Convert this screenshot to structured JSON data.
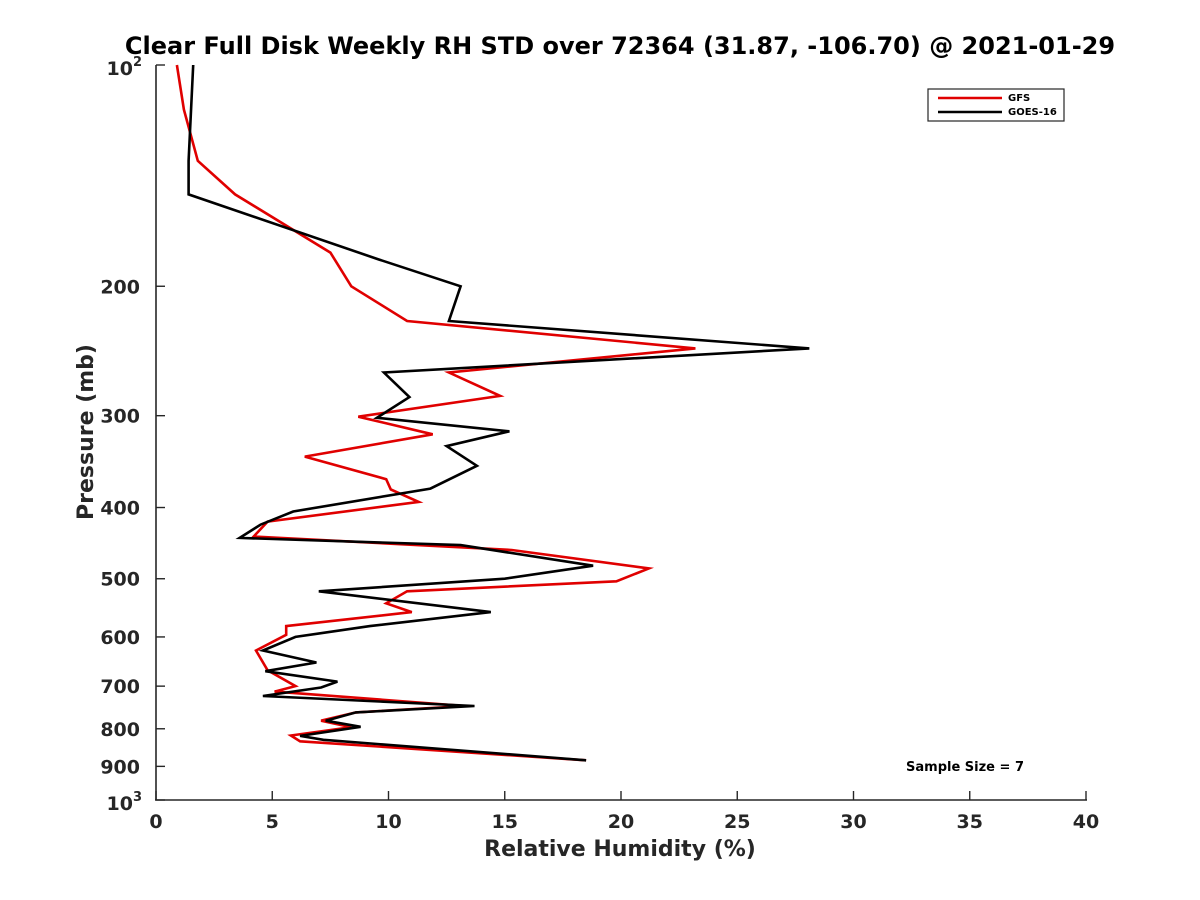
{
  "chart_data": {
    "type": "line",
    "title": "Clear Full Disk Weekly RH STD over 72364 (31.87, -106.70) @ 2021-01-29",
    "xlabel": "Relative Humidity (%)",
    "ylabel": "Pressure (mb)",
    "xlim": [
      0,
      40
    ],
    "ylim": [
      100,
      1000
    ],
    "y_scale": "log",
    "y_reversed": true,
    "grid": false,
    "legend_position": "top-right",
    "x_ticks": [
      "0",
      "5",
      "10",
      "15",
      "20",
      "25",
      "30",
      "35",
      "40"
    ],
    "y_ticks": [
      {
        "value": 100,
        "base": "10",
        "exp": "2"
      },
      {
        "value": 200,
        "label": "200"
      },
      {
        "value": 300,
        "label": "300"
      },
      {
        "value": 400,
        "label": "400"
      },
      {
        "value": 500,
        "label": "500"
      },
      {
        "value": 600,
        "label": "600"
      },
      {
        "value": 700,
        "label": "700"
      },
      {
        "value": 800,
        "label": "800"
      },
      {
        "value": 900,
        "label": "900"
      },
      {
        "value": 1000,
        "base": "10",
        "exp": "3"
      }
    ],
    "annotation": "Sample Size = 7",
    "series": [
      {
        "name": "GFS",
        "color": "#e00000",
        "points": [
          [
            0.9,
            100
          ],
          [
            1.2,
            115
          ],
          [
            1.8,
            135
          ],
          [
            3.4,
            150
          ],
          [
            7.5,
            180
          ],
          [
            8.4,
            200
          ],
          [
            10.8,
            223
          ],
          [
            23.2,
            243
          ],
          [
            12.6,
            262
          ],
          [
            14.8,
            282
          ],
          [
            8.7,
            301
          ],
          [
            11.9,
            318
          ],
          [
            6.4,
            341
          ],
          [
            9.9,
            366
          ],
          [
            10.1,
            378
          ],
          [
            11.3,
            393
          ],
          [
            4.8,
            418
          ],
          [
            4.2,
            438
          ],
          [
            15.3,
            457
          ],
          [
            21.2,
            484
          ],
          [
            19.8,
            504
          ],
          [
            10.8,
            520
          ],
          [
            9.9,
            540
          ],
          [
            11.0,
            555
          ],
          [
            5.6,
            580
          ],
          [
            5.6,
            596
          ],
          [
            4.3,
            626
          ],
          [
            4.8,
            666
          ],
          [
            6.0,
            700
          ],
          [
            5.1,
            712
          ],
          [
            13.3,
            745
          ],
          [
            8.6,
            760
          ],
          [
            7.1,
            780
          ],
          [
            8.4,
            796
          ],
          [
            5.8,
            817
          ],
          [
            6.2,
            832
          ],
          [
            18.5,
            883
          ]
        ]
      },
      {
        "name": "GOES-16",
        "color": "#000000",
        "points": [
          [
            1.6,
            100
          ],
          [
            1.4,
            135
          ],
          [
            1.4,
            150
          ],
          [
            9.6,
            184
          ],
          [
            13.1,
            200
          ],
          [
            12.6,
            223
          ],
          [
            28.1,
            243
          ],
          [
            9.8,
            262
          ],
          [
            10.9,
            283
          ],
          [
            9.5,
            302
          ],
          [
            15.2,
            315
          ],
          [
            12.5,
            330
          ],
          [
            13.8,
            351
          ],
          [
            11.8,
            377
          ],
          [
            5.9,
            405
          ],
          [
            4.5,
            422
          ],
          [
            3.6,
            440
          ],
          [
            13.1,
            450
          ],
          [
            18.8,
            480
          ],
          [
            15.0,
            500
          ],
          [
            7.0,
            520
          ],
          [
            14.4,
            555
          ],
          [
            9.2,
            580
          ],
          [
            6.0,
            600
          ],
          [
            4.6,
            626
          ],
          [
            6.9,
            650
          ],
          [
            4.7,
            668
          ],
          [
            7.8,
            690
          ],
          [
            7.1,
            703
          ],
          [
            4.6,
            722
          ],
          [
            13.7,
            745
          ],
          [
            8.6,
            760
          ],
          [
            7.3,
            780
          ],
          [
            8.8,
            795
          ],
          [
            6.2,
            818
          ],
          [
            7.2,
            828
          ],
          [
            18.5,
            883
          ]
        ]
      }
    ]
  }
}
